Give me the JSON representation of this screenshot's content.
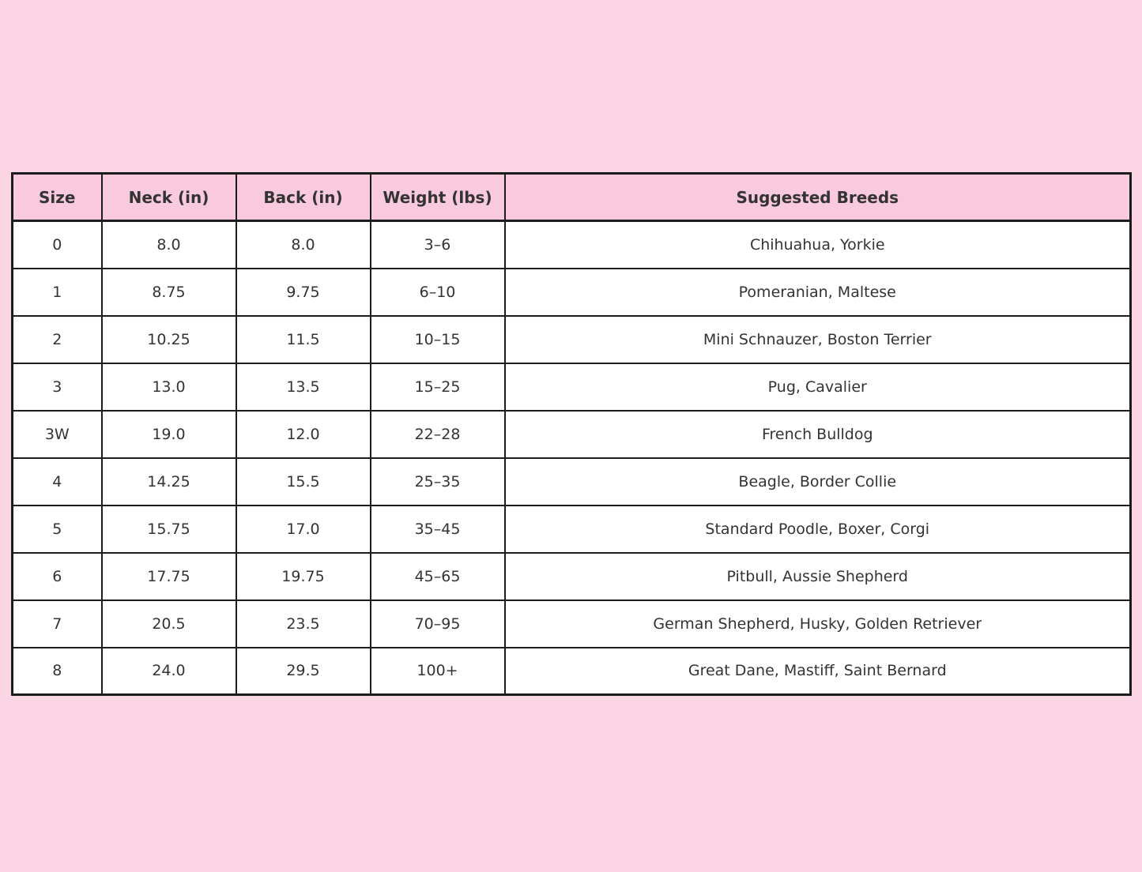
{
  "colors": {
    "page_background": "#fcd5e5",
    "header_background": "#f9c9dd",
    "border": "#1c1c1c",
    "text": "#333333",
    "row_background": "#ffffff"
  },
  "chart_data": {
    "type": "table",
    "columns": [
      "Size",
      "Neck (in)",
      "Back (in)",
      "Weight (lbs)",
      "Suggested Breeds"
    ],
    "rows": [
      [
        "0",
        "8.0",
        "8.0",
        "3–6",
        "Chihuahua, Yorkie"
      ],
      [
        "1",
        "8.75",
        "9.75",
        "6–10",
        "Pomeranian, Maltese"
      ],
      [
        "2",
        "10.25",
        "11.5",
        "10–15",
        "Mini Schnauzer, Boston Terrier"
      ],
      [
        "3",
        "13.0",
        "13.5",
        "15–25",
        "Pug, Cavalier"
      ],
      [
        "3W",
        "19.0",
        "12.0",
        "22–28",
        "French Bulldog"
      ],
      [
        "4",
        "14.25",
        "15.5",
        "25–35",
        "Beagle, Border Collie"
      ],
      [
        "5",
        "15.75",
        "17.0",
        "35–45",
        "Standard Poodle, Boxer, Corgi"
      ],
      [
        "6",
        "17.75",
        "19.75",
        "45–65",
        "Pitbull, Aussie Shepherd"
      ],
      [
        "7",
        "20.5",
        "23.5",
        "70–95",
        "German Shepherd, Husky, Golden Retriever"
      ],
      [
        "8",
        "24.0",
        "29.5",
        "100+",
        "Great Dane, Mastiff, Saint Bernard"
      ]
    ]
  }
}
